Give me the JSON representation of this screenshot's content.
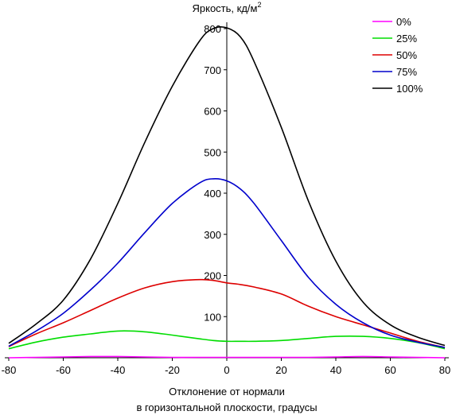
{
  "chart_data": {
    "type": "line",
    "xlabel_line1": "Отклонение от нормали",
    "xlabel_line2": "в горизонтальной плоскости, градусы",
    "ylabel": "Яркость, кд/м",
    "ylabel_sup": "2",
    "xlim": [
      -80,
      80
    ],
    "ylim": [
      0,
      800
    ],
    "xticks": [
      -80,
      -60,
      -40,
      -20,
      0,
      20,
      40,
      60,
      80
    ],
    "yticks": [
      100,
      200,
      300,
      400,
      500,
      600,
      700,
      800
    ],
    "legend_position": "top-right",
    "x": [
      -80,
      -70,
      -60,
      -50,
      -40,
      -30,
      -20,
      -10,
      -5,
      0,
      5,
      10,
      20,
      30,
      40,
      50,
      60,
      70,
      80
    ],
    "series": [
      {
        "name": "0%",
        "color": "#ff00ff",
        "values": [
          0,
          1,
          2,
          3,
          3,
          2,
          1,
          1,
          1,
          1,
          1,
          1,
          1,
          1,
          2,
          3,
          2,
          1,
          0
        ]
      },
      {
        "name": "25%",
        "color": "#00dd00",
        "values": [
          22,
          38,
          50,
          58,
          65,
          63,
          55,
          46,
          42,
          40,
          40,
          40,
          42,
          47,
          52,
          52,
          47,
          37,
          22
        ]
      },
      {
        "name": "50%",
        "color": "#dd0000",
        "values": [
          27,
          58,
          85,
          115,
          145,
          170,
          185,
          190,
          188,
          182,
          178,
          172,
          155,
          125,
          100,
          80,
          60,
          40,
          25
        ]
      },
      {
        "name": "75%",
        "color": "#0000cc",
        "values": [
          28,
          65,
          108,
          165,
          230,
          305,
          375,
          425,
          435,
          430,
          410,
          375,
          285,
          195,
          130,
          85,
          55,
          38,
          25
        ]
      },
      {
        "name": "100%",
        "color": "#000000",
        "values": [
          35,
          82,
          140,
          240,
          375,
          525,
          660,
          770,
          800,
          802,
          780,
          720,
          560,
          380,
          235,
          135,
          80,
          50,
          30
        ]
      }
    ]
  }
}
